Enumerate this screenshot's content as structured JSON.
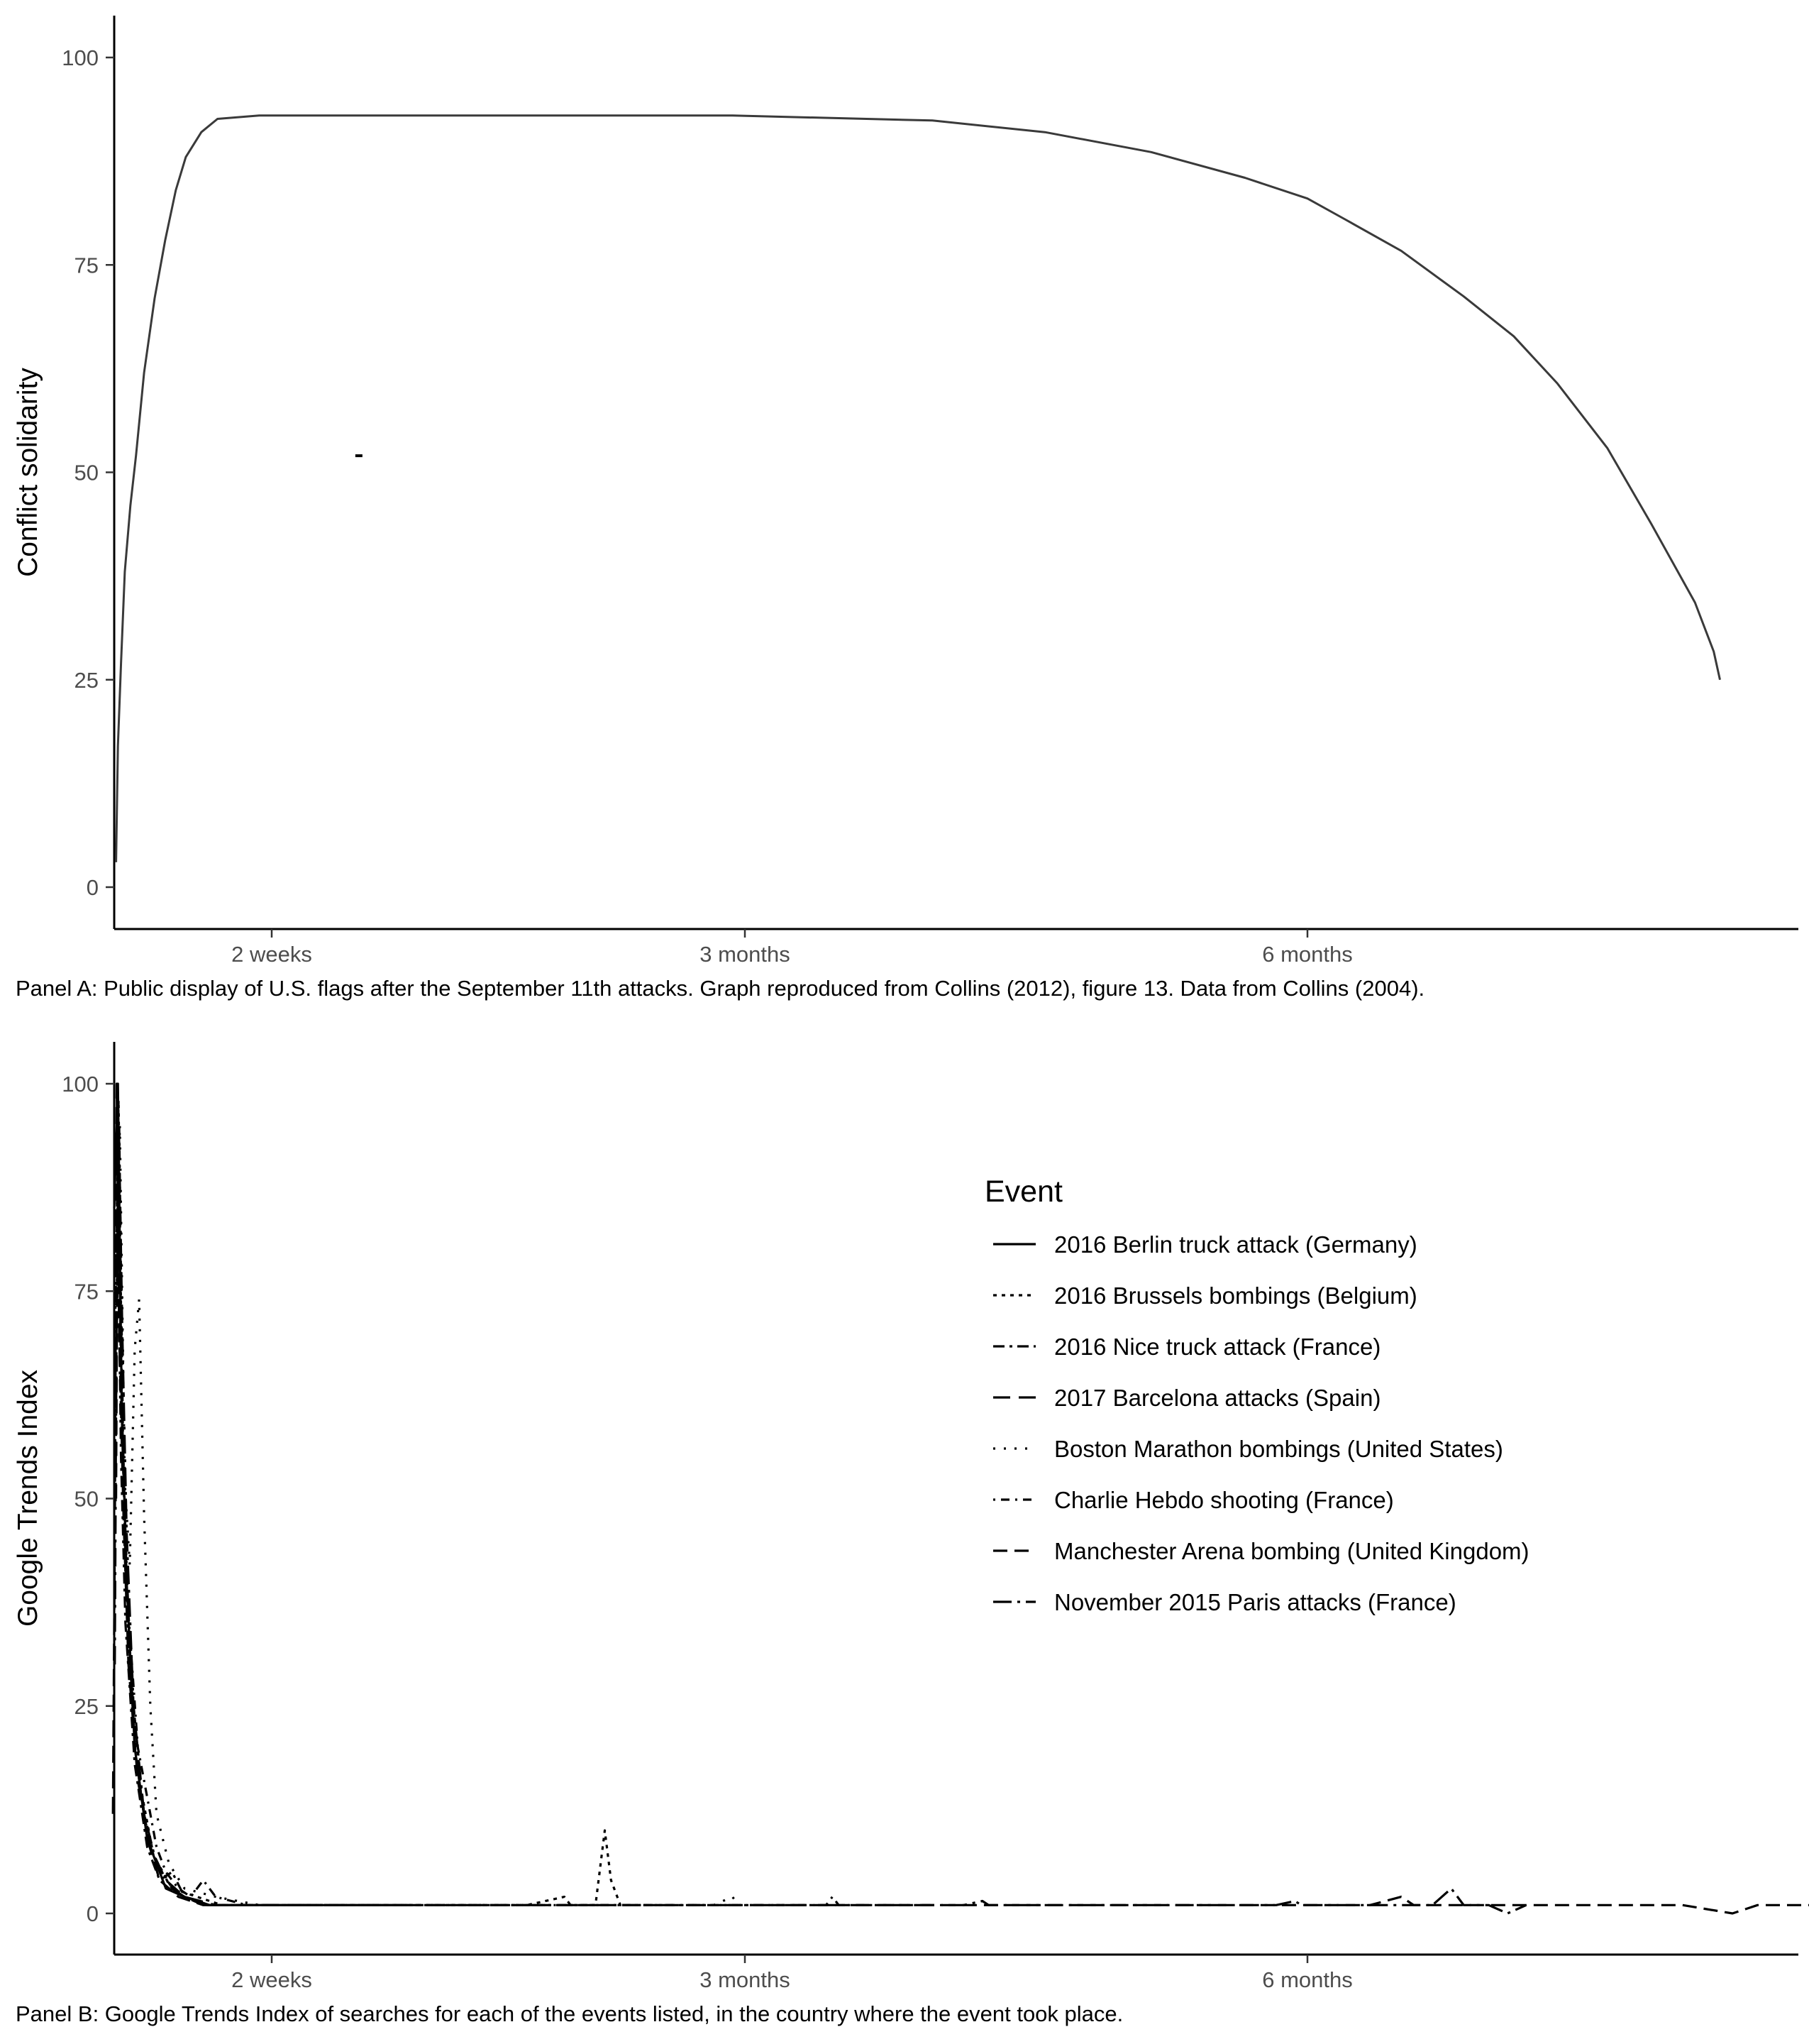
{
  "chart_data": [
    {
      "type": "line",
      "panel": "A",
      "ylabel": "Conflict solidarity",
      "xlabel": "",
      "ylim": [
        -5,
        105
      ],
      "y_ticks": [
        0,
        25,
        50,
        75,
        100
      ],
      "x_ticks": [
        {
          "label": "2 weeks",
          "day": 14
        },
        {
          "label": "3 months",
          "day": 90
        },
        {
          "label": "6 months",
          "day": 180
        }
      ],
      "xlim_days": [
        -11,
        263
      ],
      "grid": false,
      "caption": "Panel A: Public display of U.S. flags after the September 11th attacks. Graph reproduced from Collins (2012), figure 13. Data from Collins (2004).",
      "series": [
        {
          "points": [
            [
              -11,
              3
            ],
            [
              -10.7,
              17
            ],
            [
              -10.2,
              27
            ],
            [
              -9.6,
              38
            ],
            [
              -8.7,
              46
            ],
            [
              -7.8,
              52
            ],
            [
              -6.5,
              62
            ],
            [
              -4.8,
              71
            ],
            [
              -3.1,
              78
            ],
            [
              -1.4,
              84
            ],
            [
              0.2,
              88
            ],
            [
              2.7,
              91
            ],
            [
              5.3,
              92.6
            ],
            [
              12,
              93
            ],
            [
              41,
              93
            ],
            [
              88,
              93
            ],
            [
              120,
              92.4
            ],
            [
              138,
              91
            ],
            [
              155,
              88.6
            ],
            [
              170,
              85.5
            ],
            [
              180,
              83
            ],
            [
              186,
              80.5
            ],
            [
              195,
              76.7
            ],
            [
              205,
              71.2
            ],
            [
              213,
              66.4
            ],
            [
              220,
              60.7
            ],
            [
              228,
              52.9
            ],
            [
              235,
              43.8
            ],
            [
              242,
              34.3
            ],
            [
              245,
              28.4
            ],
            [
              246,
              25
            ]
          ]
        }
      ],
      "annotations": [
        {
          "x_day": 28,
          "y": 52,
          "text": ""
        }
      ]
    },
    {
      "type": "line",
      "panel": "B",
      "ylabel": "Google Trends Index",
      "xlabel": "",
      "ylim": [
        -5,
        105
      ],
      "y_ticks": [
        0,
        25,
        50,
        75,
        100
      ],
      "x_ticks": [
        {
          "label": "2 weeks",
          "day": 14
        },
        {
          "label": "3 months",
          "day": 90
        },
        {
          "label": "6 months",
          "day": 180
        }
      ],
      "xlim_days": [
        -11,
        263
      ],
      "grid": false,
      "caption": "Panel B: Google Trends Index of searches for each of the events listed, in the country where the event took place.",
      "legend": {
        "title": "Event",
        "position": "top-right"
      },
      "series": [
        {
          "name": "2016 Berlin truck attack (Germany)",
          "dash": "solid",
          "points": [
            [
              -11.3,
              85
            ],
            [
              -10.7,
              100
            ],
            [
              -10.1,
              62
            ],
            [
              -9.3,
              40
            ],
            [
              -8,
              20
            ],
            [
              -6,
              9
            ],
            [
              -3,
              3
            ],
            [
              0,
              2
            ],
            [
              4,
              1
            ],
            [
              20,
              1
            ],
            [
              35,
              1
            ]
          ]
        },
        {
          "name": "2016 Brussels bombings (Belgium)",
          "dash": "dotted-short",
          "points": [
            [
              -11,
              78
            ],
            [
              -10.6,
              98
            ],
            [
              -10,
              60
            ],
            [
              -9,
              32
            ],
            [
              -7,
              15
            ],
            [
              -5,
              7
            ],
            [
              -2,
              3
            ],
            [
              2,
              2
            ],
            [
              6,
              1
            ],
            [
              40,
              1
            ],
            [
              50,
              1
            ],
            [
              55,
              1
            ],
            [
              61,
              2
            ],
            [
              62,
              1
            ],
            [
              66,
              1
            ],
            [
              67.5,
              10
            ],
            [
              68.5,
              4
            ],
            [
              70,
              1
            ],
            [
              75,
              1
            ]
          ]
        },
        {
          "name": "2016 Nice truck attack (France)",
          "dash": "dashdot",
          "points": [
            [
              -11.2,
              68
            ],
            [
              -10.8,
              88
            ],
            [
              -10.2,
              55
            ],
            [
              -9.5,
              35
            ],
            [
              -8,
              18
            ],
            [
              -6,
              8
            ],
            [
              -4,
              4
            ],
            [
              -2,
              5
            ],
            [
              0,
              2
            ],
            [
              3,
              1
            ],
            [
              15,
              1
            ]
          ]
        },
        {
          "name": "2017 Barcelona attacks (Spain)",
          "dash": "dash-long",
          "points": [
            [
              -11.5,
              12
            ],
            [
              -11.2,
              45
            ],
            [
              -10.9,
              100
            ],
            [
              -10.5,
              70
            ],
            [
              -9.8,
              48
            ],
            [
              -9,
              30
            ],
            [
              -7.5,
              16
            ],
            [
              -5.5,
              8
            ],
            [
              -3,
              4
            ],
            [
              0,
              2
            ],
            [
              5,
              1
            ],
            [
              20,
              1
            ]
          ]
        },
        {
          "name": "Boston Marathon bombings (United States)",
          "dash": "dotted",
          "points": [
            [
              -11,
              72
            ],
            [
              -10.4,
              95
            ],
            [
              -9.6,
              52
            ],
            [
              -8.8,
              42
            ],
            [
              -8,
              68
            ],
            [
              -7.3,
              74
            ],
            [
              -6.5,
              48
            ],
            [
              -5.5,
              25
            ],
            [
              -4.5,
              12
            ],
            [
              -2.5,
              6
            ],
            [
              0,
              3
            ],
            [
              5,
              2
            ],
            [
              12,
              1
            ],
            [
              25,
              1
            ],
            [
              85,
              1
            ],
            [
              88,
              2
            ],
            [
              89,
              1
            ],
            [
              95,
              1
            ],
            [
              100,
              1
            ]
          ]
        },
        {
          "name": "Charlie Hebdo shooting (France)",
          "dash": "dashdot-sparse",
          "points": [
            [
              -11,
              60
            ],
            [
              -10.5,
              95
            ],
            [
              -9.8,
              52
            ],
            [
              -9,
              36
            ],
            [
              -7.5,
              20
            ],
            [
              -6,
              14
            ],
            [
              -4.5,
              8
            ],
            [
              -3,
              5
            ],
            [
              -1,
              3
            ],
            [
              1,
              2
            ],
            [
              3,
              4
            ],
            [
              5,
              2
            ],
            [
              10,
              1
            ],
            [
              25,
              1
            ],
            [
              103,
              1
            ],
            [
              104,
              2
            ],
            [
              105,
              1
            ],
            [
              110,
              1
            ],
            [
              120,
              1
            ]
          ]
        },
        {
          "name": "Manchester Arena bombing (United Kingdom)",
          "dash": "dash",
          "points": [
            [
              -11,
              50
            ],
            [
              -10.7,
              96
            ],
            [
              -10.2,
              64
            ],
            [
              -9.4,
              40
            ],
            [
              -8,
              20
            ],
            [
              -6,
              9
            ],
            [
              -4,
              4
            ],
            [
              -1,
              2
            ],
            [
              3,
              1
            ],
            [
              30,
              1
            ],
            [
              45,
              1
            ],
            [
              108,
              1
            ],
            [
              115,
              1
            ],
            [
              135,
              1
            ],
            [
              140,
              1
            ],
            [
              145,
              1
            ],
            [
              150,
              1
            ],
            [
              158,
              1
            ],
            [
              162,
              1
            ],
            [
              170,
              1
            ],
            [
              175,
              1
            ],
            [
              183,
              1
            ],
            [
              190,
              1
            ],
            [
              195,
              2
            ],
            [
              197,
              1
            ],
            [
              200,
              1
            ],
            [
              215,
              1
            ],
            [
              222,
              1
            ],
            [
              228,
              1
            ],
            [
              240,
              1
            ],
            [
              248,
              0
            ],
            [
              252,
              1
            ],
            [
              262,
              1
            ]
          ]
        },
        {
          "name": "November 2015 Paris attacks (France)",
          "dash": "longdash-dot",
          "points": [
            [
              -11.2,
              30
            ],
            [
              -10.9,
              75
            ],
            [
              -10.5,
              93
            ],
            [
              -10,
              70
            ],
            [
              -9.3,
              46
            ],
            [
              -8.2,
              25
            ],
            [
              -6.5,
              12
            ],
            [
              -4.5,
              6
            ],
            [
              -2,
              3
            ],
            [
              0,
              2
            ],
            [
              4,
              1
            ],
            [
              20,
              1
            ],
            [
              125,
              1
            ],
            [
              128,
              1.5
            ],
            [
              129,
              1
            ],
            [
              138,
              1
            ],
            [
              175,
              1
            ],
            [
              178,
              1.5
            ],
            [
              179,
              1
            ],
            [
              180,
              1
            ],
            [
              200,
              1
            ],
            [
              203,
              3
            ],
            [
              205,
              1
            ],
            [
              209,
              1
            ],
            [
              212,
              0
            ],
            [
              215,
              1
            ]
          ]
        }
      ]
    }
  ]
}
